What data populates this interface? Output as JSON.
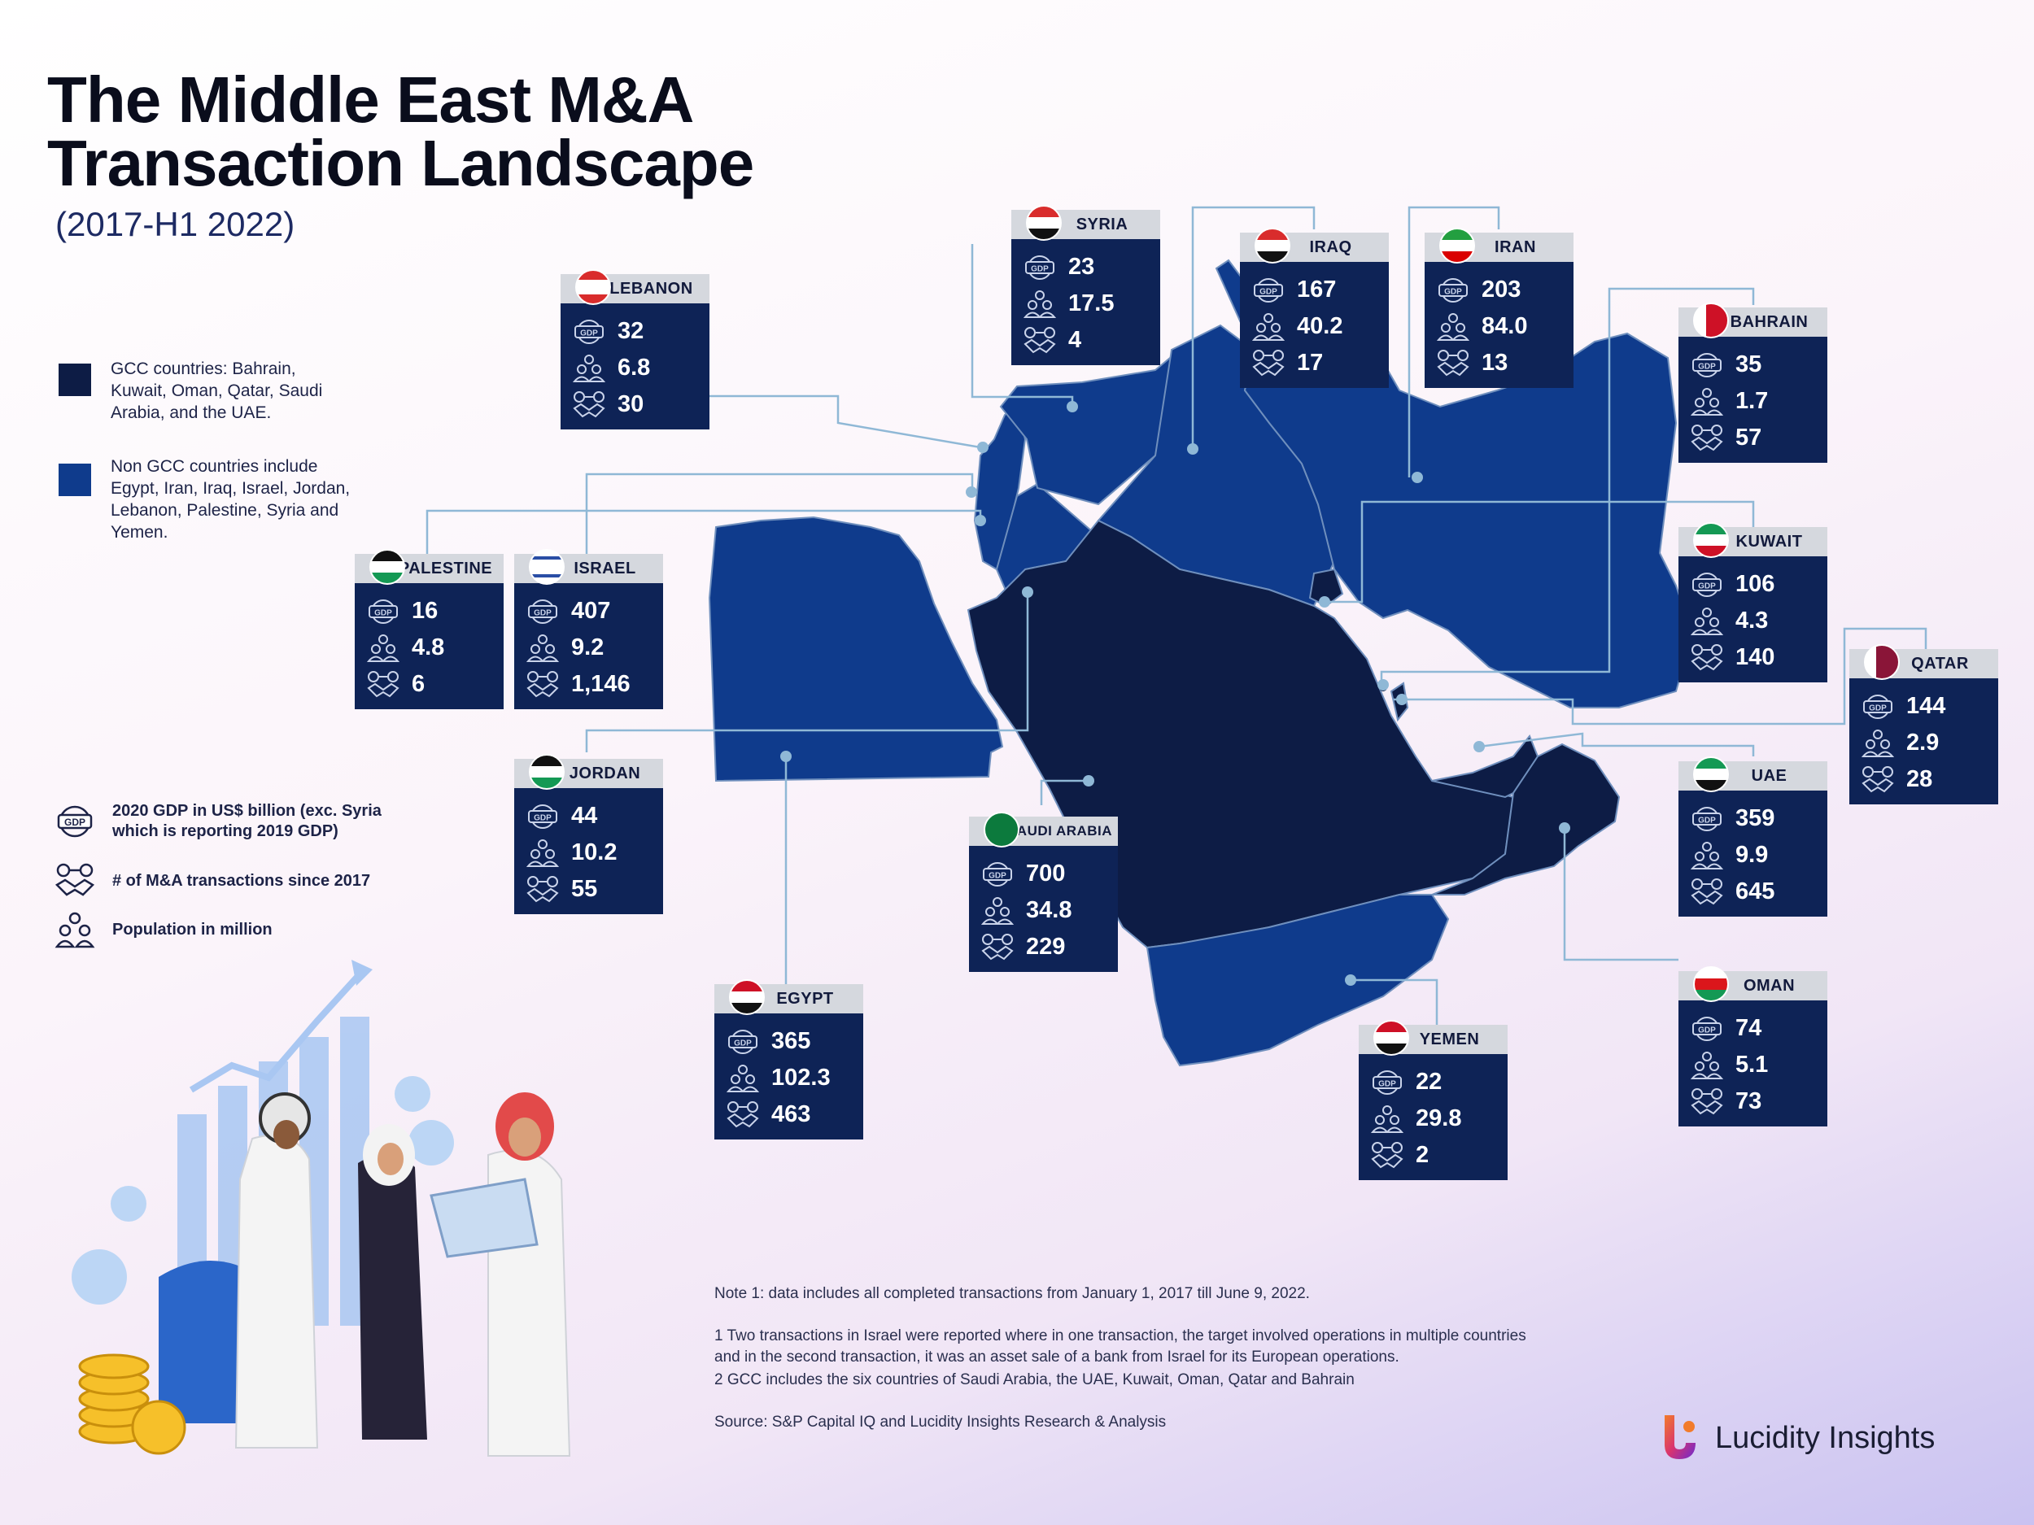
{
  "title_line1": "The Middle East M&A",
  "title_line2": "Transaction Landscape",
  "subtitle": "(2017-H1 2022)",
  "legend": {
    "gcc": {
      "color": "#0d1c45",
      "text": "GCC countries: Bahrain, Kuwait, Oman, Qatar, Saudi Arabia, and the UAE."
    },
    "non_gcc": {
      "color": "#0f3b8c",
      "text": "Non GCC countries include Egypt, Iran, Iraq, Israel, Jordan, Lebanon, Palestine, Syria and Yemen."
    }
  },
  "key": {
    "gdp": "2020 GDP in US$ billion (exc. Syria which is reporting 2019 GDP)",
    "deals": "# of M&A transactions since 2017",
    "population": "Population in million",
    "gdp_icon_label": "GDP"
  },
  "countries": {
    "lebanon": {
      "name": "LEBANON",
      "gdp": "32",
      "population": "6.8",
      "deals": "30"
    },
    "syria": {
      "name": "SYRIA",
      "gdp": "23",
      "population": "17.5",
      "deals": "4"
    },
    "iraq": {
      "name": "IRAQ",
      "gdp": "167",
      "population": "40.2",
      "deals": "17"
    },
    "iran": {
      "name": "IRAN",
      "gdp": "203",
      "population": "84.0",
      "deals": "13"
    },
    "bahrain": {
      "name": "BAHRAIN",
      "gdp": "35",
      "population": "1.7",
      "deals": "57"
    },
    "palestine": {
      "name": "PALESTINE",
      "gdp": "16",
      "population": "4.8",
      "deals": "6"
    },
    "israel": {
      "name": "ISRAEL",
      "gdp": "407",
      "population": "9.2",
      "deals": "1,146"
    },
    "kuwait": {
      "name": "KUWAIT",
      "gdp": "106",
      "population": "4.3",
      "deals": "140"
    },
    "qatar": {
      "name": "QATAR",
      "gdp": "144",
      "population": "2.9",
      "deals": "28"
    },
    "jordan": {
      "name": "JORDAN",
      "gdp": "44",
      "population": "10.2",
      "deals": "55"
    },
    "saudi": {
      "name": "SAUDI ARABIA",
      "gdp": "700",
      "population": "34.8",
      "deals": "229"
    },
    "uae": {
      "name": "UAE",
      "gdp": "359",
      "population": "9.9",
      "deals": "645"
    },
    "egypt": {
      "name": "EGYPT",
      "gdp": "365",
      "population": "102.3",
      "deals": "463"
    },
    "oman": {
      "name": "OMAN",
      "gdp": "74",
      "population": "5.1",
      "deals": "73"
    },
    "yemen": {
      "name": "YEMEN",
      "gdp": "22",
      "population": "29.8",
      "deals": "2"
    }
  },
  "notes": {
    "note1": "Note 1: data includes all completed transactions from January 1, 2017 till June 9, 2022.",
    "fn1": "1  Two transactions in Israel were reported where in one transaction, the target involved operations in multiple countries and in the second transaction, it was an asset sale of a bank from Israel for its European operations.",
    "fn2": "2  GCC includes the six countries of Saudi Arabia, the UAE, Kuwait, Oman, Qatar and Bahrain",
    "source": "Source: S&P Capital IQ and Lucidity Insights Research & Analysis"
  },
  "brand": "Lucidity Insights",
  "colors": {
    "card": "#0e2356",
    "gcc": "#0d1c45",
    "non_gcc": "#0f3b8c",
    "leader": "#8fb8d6"
  }
}
